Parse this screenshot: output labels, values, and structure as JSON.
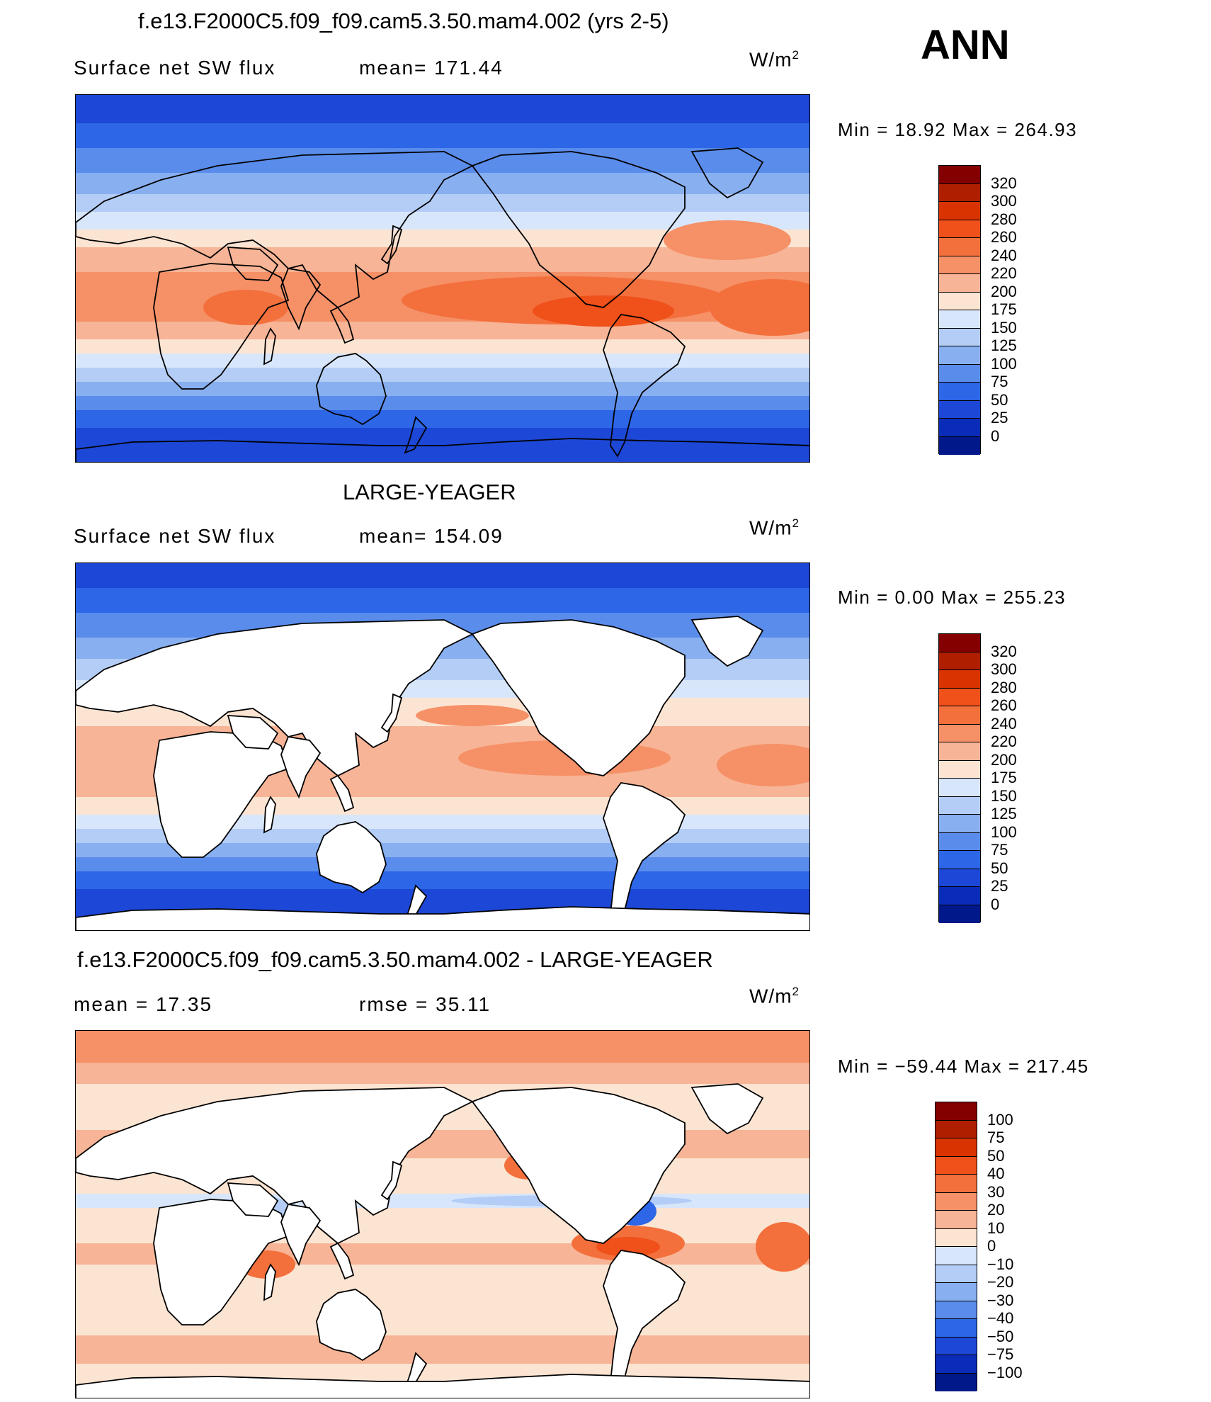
{
  "season": "ANN",
  "panels": [
    {
      "title": "f.e13.F2000C5.f09_f09.cam5.3.50.mam4.002 (yrs 2-5)",
      "left_label": "Surface net SW flux",
      "right_label": "mean= 171.44",
      "units": "W/m",
      "units_sup": "2",
      "minmax": "Min =   18.92 Max = 264.93",
      "colorbar": {
        "labels": [
          "320",
          "300",
          "280",
          "260",
          "240",
          "220",
          "200",
          "175",
          "150",
          "125",
          "100",
          "75",
          "50",
          "25",
          "0"
        ],
        "colors": [
          "#840000",
          "#b01e00",
          "#d83300",
          "#f0501a",
          "#f3703d",
          "#f59067",
          "#f7b496",
          "#fce4d2",
          "#d8e6fb",
          "#b3cdf6",
          "#88aff0",
          "#5a8ceb",
          "#2d66e6",
          "#1d47d6",
          "#0a2cb8",
          "#001889"
        ]
      },
      "map_fill": "field"
    },
    {
      "title": "LARGE-YEAGER",
      "left_label": "Surface net SW flux",
      "right_label": "mean= 154.09",
      "units": "W/m",
      "units_sup": "2",
      "minmax": "Min =    0.00 Max = 255.23",
      "colorbar": {
        "labels": [
          "320",
          "300",
          "280",
          "260",
          "240",
          "220",
          "200",
          "175",
          "150",
          "125",
          "100",
          "75",
          "50",
          "25",
          "0"
        ],
        "colors": [
          "#840000",
          "#b01e00",
          "#d83300",
          "#f0501a",
          "#f3703d",
          "#f59067",
          "#f7b496",
          "#fce4d2",
          "#d8e6fb",
          "#b3cdf6",
          "#88aff0",
          "#5a8ceb",
          "#2d66e6",
          "#1d47d6",
          "#0a2cb8",
          "#001889"
        ]
      },
      "map_fill": "ocean-only"
    },
    {
      "title": "f.e13.F2000C5.f09_f09.cam5.3.50.mam4.002 - LARGE-YEAGER",
      "left_label": "mean =    17.35",
      "right_label": "rmse =    35.11",
      "units": "W/m",
      "units_sup": "2",
      "minmax": "Min = −59.44 Max = 217.45",
      "colorbar": {
        "labels": [
          "100",
          "75",
          "50",
          "40",
          "30",
          "20",
          "10",
          "0",
          "−10",
          "−20",
          "−30",
          "−40",
          "−50",
          "−75",
          "−100"
        ],
        "colors": [
          "#840000",
          "#b01e00",
          "#d83300",
          "#f0501a",
          "#f3703d",
          "#f59067",
          "#f7b496",
          "#fce4d2",
          "#d8e6fb",
          "#b3cdf6",
          "#88aff0",
          "#5a8ceb",
          "#2d66e6",
          "#1d47d6",
          "#0a2cb8",
          "#001889"
        ]
      },
      "map_fill": "difference"
    }
  ]
}
